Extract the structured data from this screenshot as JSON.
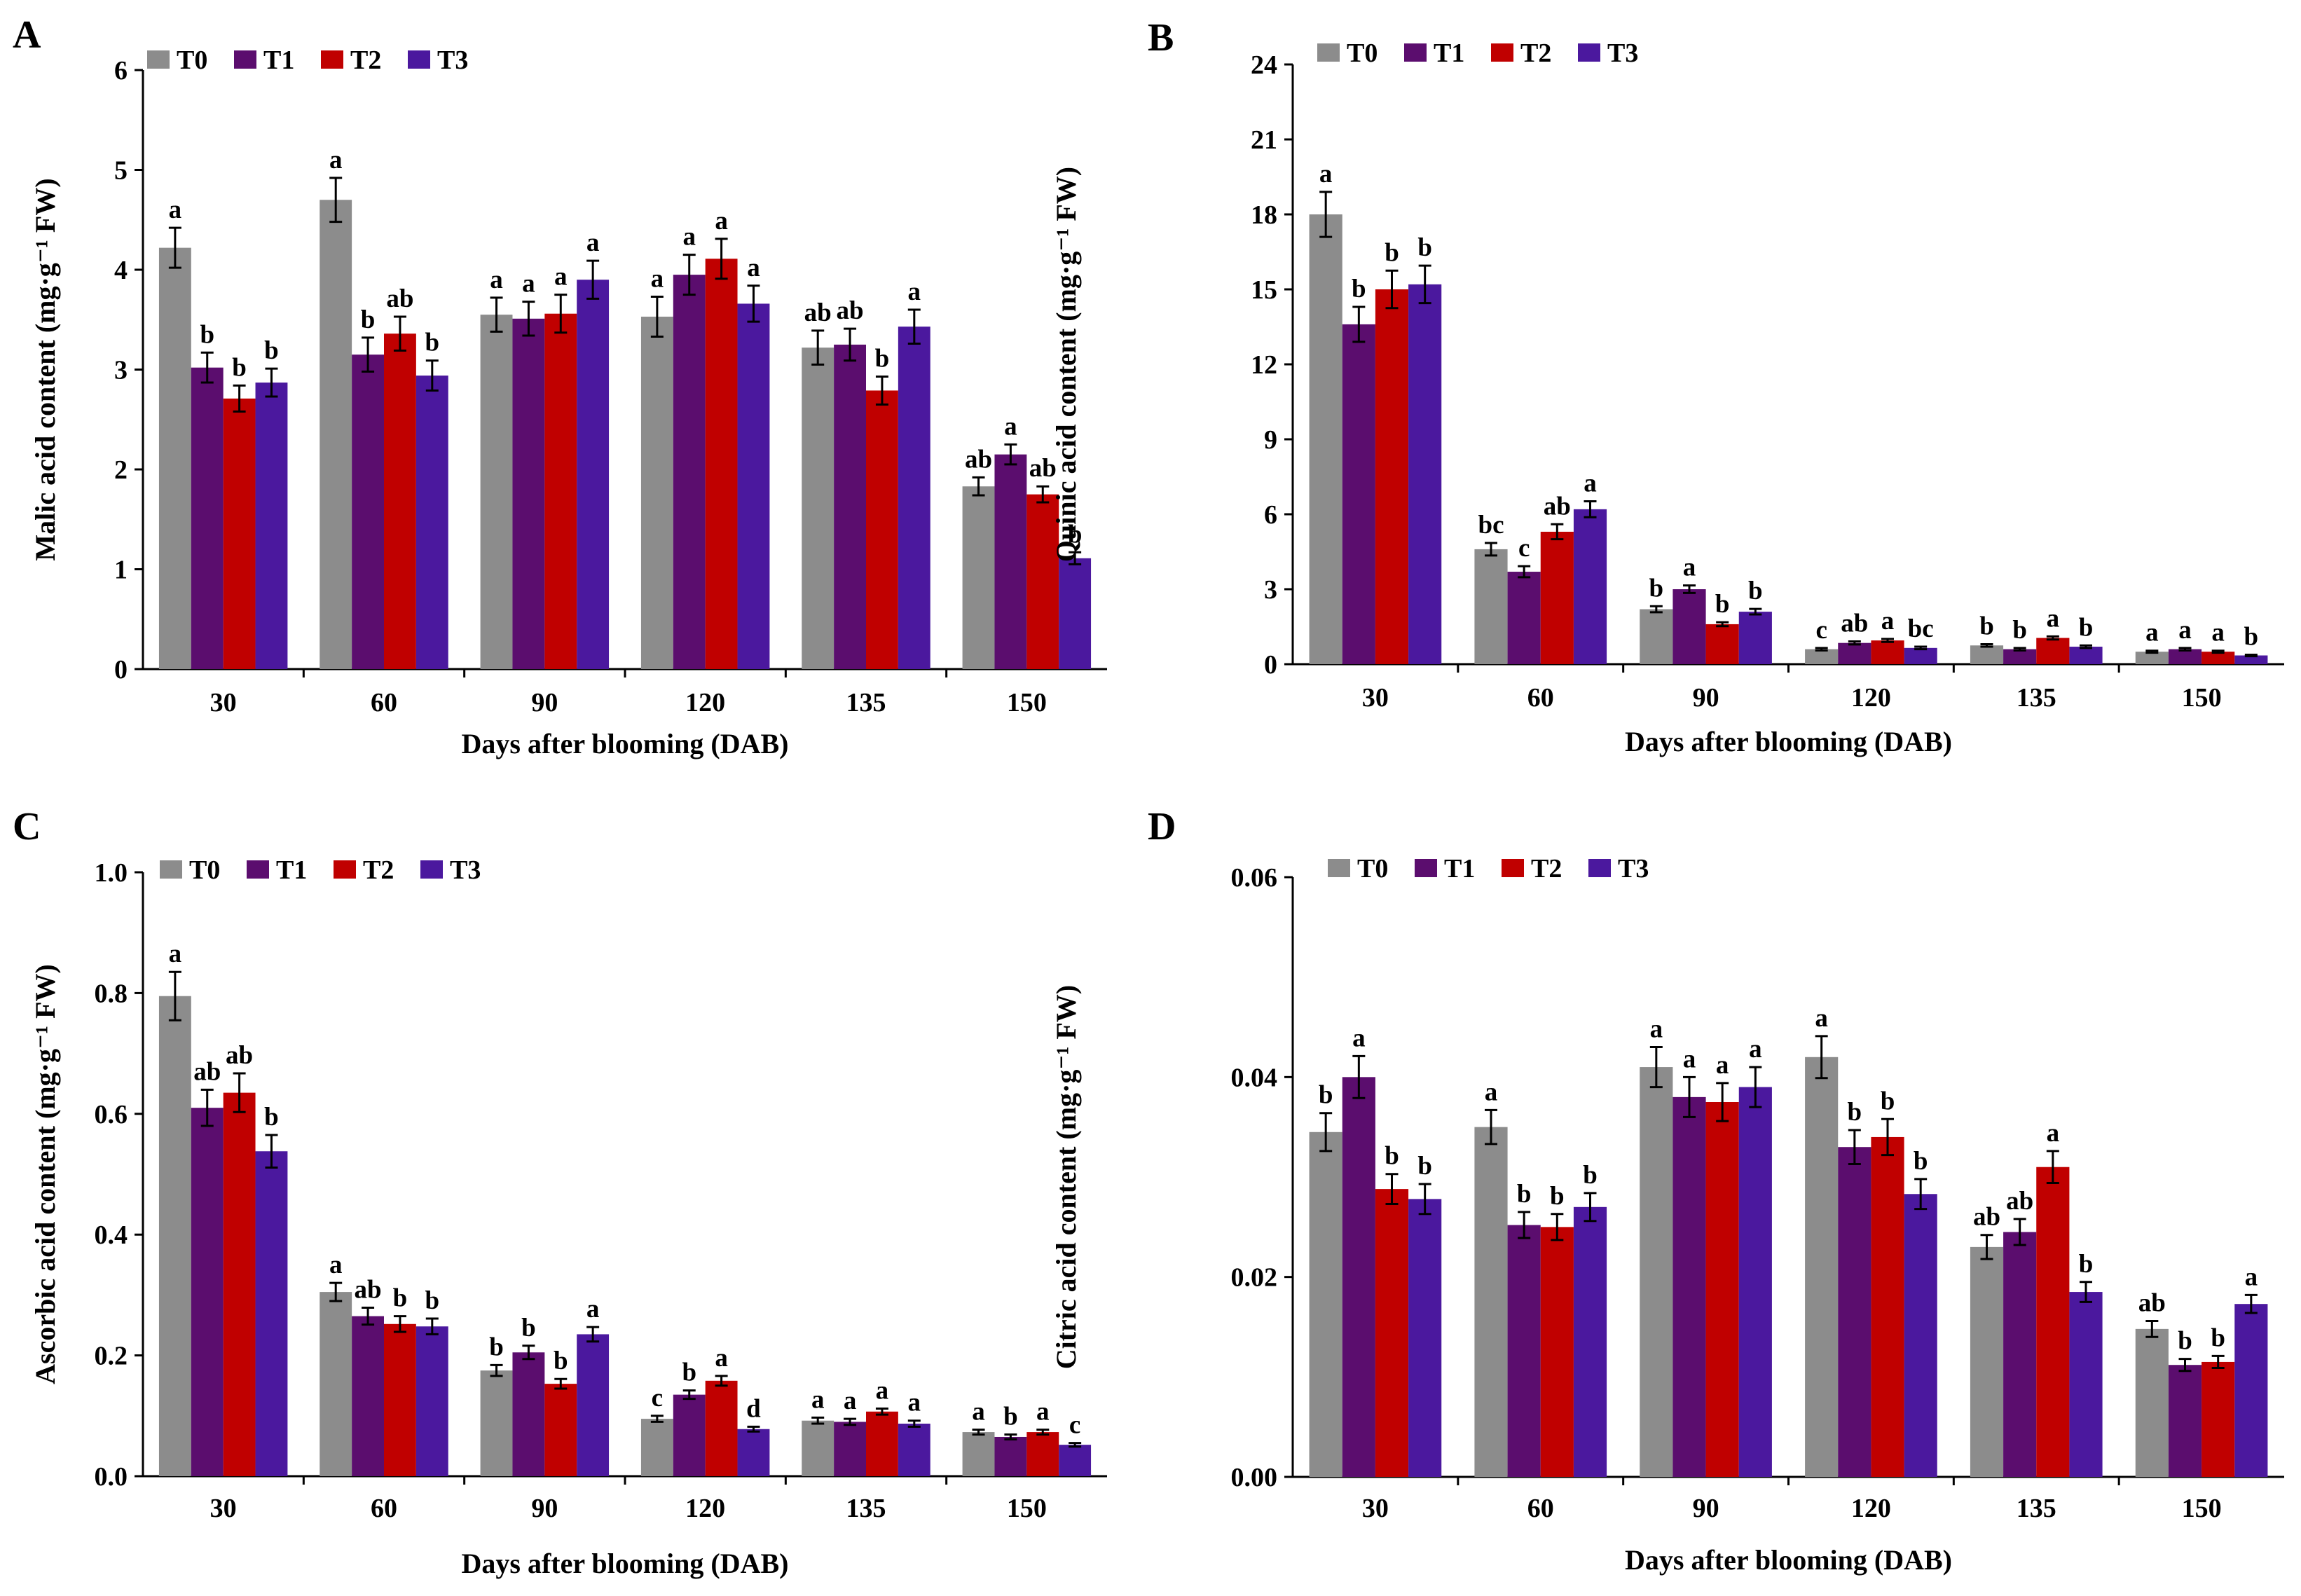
{
  "figure": {
    "series_colors": {
      "T0": "#8c8c8c",
      "T1": "#5b0d6e",
      "T2": "#c00000",
      "T3": "#4b189e"
    }
  },
  "chart_data": [
    {
      "panel": "A",
      "type": "bar",
      "categories": [
        "30",
        "60",
        "90",
        "120",
        "135",
        "150"
      ],
      "xlabel": "Days after blooming (DAB)",
      "ylabel": "Malic acid content (mg·g⁻¹ FW)",
      "ylim": [
        0,
        6
      ],
      "yticks": [
        "0",
        "1",
        "2",
        "3",
        "4",
        "5",
        "6"
      ],
      "legend": "top-left",
      "series": [
        {
          "name": "T0",
          "values": [
            4.22,
            4.7,
            3.55,
            3.53,
            3.22,
            1.83
          ],
          "errors": [
            0.2,
            0.22,
            0.17,
            0.2,
            0.17,
            0.09
          ],
          "labels": [
            "a",
            "a",
            "a",
            "a",
            "ab",
            "ab"
          ]
        },
        {
          "name": "T1",
          "values": [
            3.02,
            3.15,
            3.51,
            3.95,
            3.25,
            2.15
          ],
          "errors": [
            0.15,
            0.17,
            0.17,
            0.2,
            0.16,
            0.1
          ],
          "labels": [
            "b",
            "b",
            "a",
            "a",
            "ab",
            "a"
          ]
        },
        {
          "name": "T2",
          "values": [
            2.71,
            3.36,
            3.56,
            4.11,
            2.79,
            1.75
          ],
          "errors": [
            0.13,
            0.17,
            0.19,
            0.2,
            0.14,
            0.08
          ],
          "labels": [
            "b",
            "ab",
            "a",
            "a",
            "b",
            "ab"
          ]
        },
        {
          "name": "T3",
          "values": [
            2.87,
            2.94,
            3.9,
            3.66,
            3.43,
            1.11
          ],
          "errors": [
            0.14,
            0.15,
            0.19,
            0.18,
            0.17,
            0.06
          ],
          "labels": [
            "b",
            "b",
            "a",
            "a",
            "a",
            "b"
          ]
        }
      ]
    },
    {
      "panel": "B",
      "type": "bar",
      "categories": [
        "30",
        "60",
        "90",
        "120",
        "135",
        "150"
      ],
      "xlabel": "Days after blooming (DAB)",
      "ylabel": "Quinic acid content (mg·g⁻¹ FW)",
      "ylim": [
        0,
        24
      ],
      "yticks": [
        "0",
        "3",
        "6",
        "9",
        "12",
        "15",
        "18",
        "21",
        "24"
      ],
      "legend": "top-left",
      "series": [
        {
          "name": "T0",
          "values": [
            18.0,
            4.6,
            2.2,
            0.6,
            0.75,
            0.5
          ],
          "errors": [
            0.9,
            0.25,
            0.12,
            0.05,
            0.05,
            0.04
          ],
          "labels": [
            "a",
            "bc",
            "b",
            "c",
            "b",
            "a"
          ]
        },
        {
          "name": "T1",
          "values": [
            13.6,
            3.7,
            3.0,
            0.85,
            0.6,
            0.6
          ],
          "errors": [
            0.7,
            0.22,
            0.15,
            0.06,
            0.05,
            0.05
          ],
          "labels": [
            "b",
            "c",
            "a",
            "ab",
            "b",
            "a"
          ]
        },
        {
          "name": "T2",
          "values": [
            15.0,
            5.3,
            1.6,
            0.95,
            1.05,
            0.5
          ],
          "errors": [
            0.75,
            0.3,
            0.08,
            0.06,
            0.06,
            0.04
          ],
          "labels": [
            "b",
            "ab",
            "b",
            "a",
            "a",
            "a"
          ]
        },
        {
          "name": "T3",
          "values": [
            15.2,
            6.2,
            2.1,
            0.65,
            0.7,
            0.35
          ],
          "errors": [
            0.75,
            0.32,
            0.11,
            0.05,
            0.05,
            0.03
          ],
          "labels": [
            "b",
            "a",
            "b",
            "bc",
            "b",
            "b"
          ]
        }
      ]
    },
    {
      "panel": "C",
      "type": "bar",
      "categories": [
        "30",
        "60",
        "90",
        "120",
        "135",
        "150"
      ],
      "xlabel": "Days after blooming (DAB)",
      "ylabel": "Ascorbic acid content (mg·g⁻¹ FW)",
      "ylim": [
        0,
        1.0
      ],
      "yticks": [
        "0.0",
        "0.2",
        "0.4",
        "0.6",
        "0.8",
        "1.0"
      ],
      "legend": "top-left",
      "series": [
        {
          "name": "T0",
          "values": [
            0.795,
            0.305,
            0.175,
            0.095,
            0.092,
            0.073
          ],
          "errors": [
            0.04,
            0.015,
            0.009,
            0.005,
            0.005,
            0.004
          ],
          "labels": [
            "a",
            "a",
            "b",
            "c",
            "a",
            "a"
          ]
        },
        {
          "name": "T1",
          "values": [
            0.61,
            0.265,
            0.205,
            0.135,
            0.09,
            0.065
          ],
          "errors": [
            0.03,
            0.014,
            0.011,
            0.007,
            0.005,
            0.004
          ],
          "labels": [
            "ab",
            "ab",
            "b",
            "b",
            "a",
            "b"
          ]
        },
        {
          "name": "T2",
          "values": [
            0.635,
            0.252,
            0.153,
            0.158,
            0.107,
            0.073
          ],
          "errors": [
            0.032,
            0.013,
            0.008,
            0.008,
            0.005,
            0.004
          ],
          "labels": [
            "ab",
            "b",
            "b",
            "a",
            "a",
            "a"
          ]
        },
        {
          "name": "T3",
          "values": [
            0.538,
            0.248,
            0.235,
            0.078,
            0.087,
            0.052
          ],
          "errors": [
            0.027,
            0.013,
            0.012,
            0.004,
            0.005,
            0.003
          ],
          "labels": [
            "b",
            "b",
            "a",
            "d",
            "a",
            "c"
          ]
        }
      ]
    },
    {
      "panel": "D",
      "type": "bar",
      "categories": [
        "30",
        "60",
        "90",
        "120",
        "135",
        "150"
      ],
      "xlabel": "Days after blooming (DAB)",
      "ylabel": "Citric acid content (mg·g⁻¹ FW)",
      "ylim": [
        0,
        0.06
      ],
      "yticks": [
        "0.00",
        "0.02",
        "0.04",
        "0.06"
      ],
      "legend": "top-left",
      "series": [
        {
          "name": "T0",
          "values": [
            0.0345,
            0.035,
            0.041,
            0.042,
            0.023,
            0.0148
          ],
          "errors": [
            0.0019,
            0.0017,
            0.002,
            0.0021,
            0.0012,
            0.0008
          ],
          "labels": [
            "b",
            "a",
            "a",
            "a",
            "ab",
            "ab"
          ]
        },
        {
          "name": "T1",
          "values": [
            0.04,
            0.0252,
            0.038,
            0.033,
            0.0245,
            0.0112
          ],
          "errors": [
            0.0021,
            0.0013,
            0.002,
            0.0017,
            0.0013,
            0.0006
          ],
          "labels": [
            "a",
            "b",
            "a",
            "b",
            "ab",
            "b"
          ]
        },
        {
          "name": "T2",
          "values": [
            0.0288,
            0.025,
            0.0375,
            0.034,
            0.031,
            0.0115
          ],
          "errors": [
            0.0015,
            0.0013,
            0.0019,
            0.0018,
            0.0016,
            0.0006
          ],
          "labels": [
            "b",
            "b",
            "a",
            "b",
            "a",
            "b"
          ]
        },
        {
          "name": "T3",
          "values": [
            0.0278,
            0.027,
            0.039,
            0.0283,
            0.0185,
            0.0173
          ],
          "errors": [
            0.0015,
            0.0014,
            0.002,
            0.0015,
            0.001,
            0.0009
          ],
          "labels": [
            "b",
            "b",
            "a",
            "b",
            "b",
            "a"
          ]
        }
      ]
    }
  ]
}
